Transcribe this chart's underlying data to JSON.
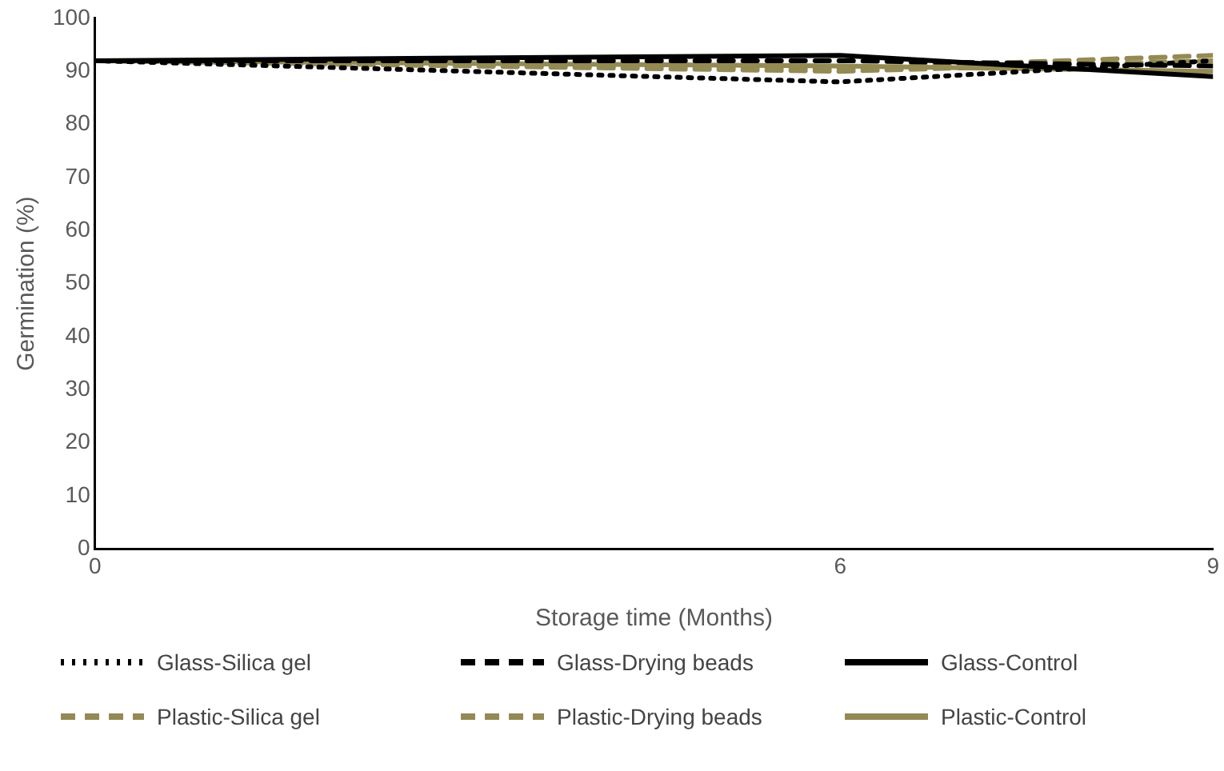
{
  "chart_data": {
    "type": "line",
    "xlabel": "Storage time (Months)",
    "ylabel": "Germination (%)",
    "x": [
      0,
      6,
      9
    ],
    "xlim": [
      0,
      9
    ],
    "xticks": [
      0,
      6,
      9
    ],
    "ylim": [
      0,
      100
    ],
    "yticks": [
      0,
      10,
      20,
      30,
      40,
      50,
      60,
      70,
      80,
      90,
      100
    ],
    "grid": false,
    "legend": "bottom",
    "marker": "none",
    "series": [
      {
        "name": "Glass-Silica gel",
        "color": "#000000",
        "line_style": "dotted",
        "values": [
          92,
          88,
          92
        ]
      },
      {
        "name": "Glass-Drying beads",
        "color": "#000000",
        "line_style": "dashed",
        "values": [
          92,
          92,
          91
        ]
      },
      {
        "name": "Glass-Control",
        "color": "#000000",
        "line_style": "solid",
        "values": [
          92,
          93,
          89
        ]
      },
      {
        "name": "Plastic-Silica gel",
        "color": "#948a54",
        "line_style": "dashed",
        "values": [
          92,
          90,
          92
        ]
      },
      {
        "name": "Plastic-Drying beads",
        "color": "#948a54",
        "line_style": "dashed",
        "values": [
          92,
          90.5,
          93
        ]
      },
      {
        "name": "Plastic-Control",
        "color": "#948a54",
        "line_style": "solid",
        "values": [
          92,
          91,
          90
        ]
      }
    ]
  }
}
